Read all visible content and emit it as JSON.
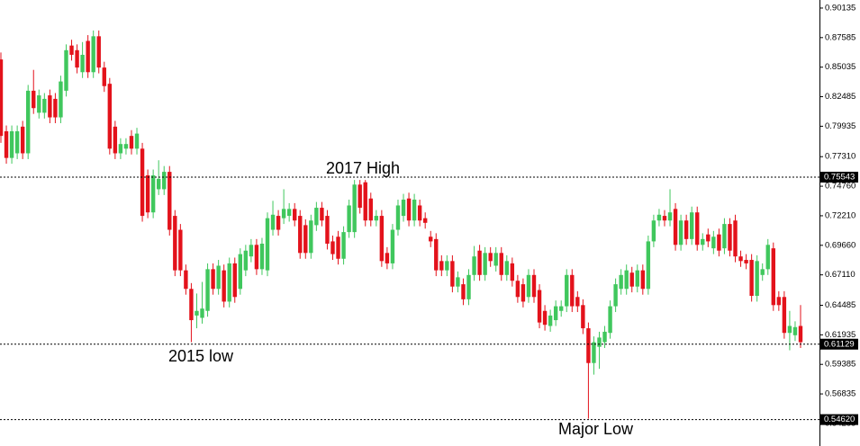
{
  "chart_data": {
    "type": "candlestick",
    "up_color": "#40c75d",
    "down_color": "#e3121b",
    "ylim": [
      0.5234,
      0.9083
    ],
    "yticks": [
      0.90135,
      0.87585,
      0.85035,
      0.82485,
      0.79935,
      {
        "value": 0.7731,
        "label": "0.77310"
      },
      {
        "value": 0.7476,
        "label": "0.74760"
      },
      {
        "value": 0.7221,
        "label": "0.72210"
      },
      {
        "value": 0.6966,
        "label": "0.69660"
      },
      {
        "value": 0.6711,
        "label": "0.67110"
      },
      0.64485,
      0.61935,
      0.59385,
      0.56835,
      0.54285
    ],
    "levels": [
      {
        "value": 0.75543,
        "label": "0.75543"
      },
      {
        "value": 0.61129,
        "label": "0.61129"
      },
      {
        "value": 0.5462,
        "label": "0.54620"
      }
    ],
    "annotations": [
      "2017 High",
      "2015 low",
      "Major Low"
    ],
    "open": [
      0.857,
      0.795,
      0.772,
      0.776,
      0.799,
      0.776,
      0.83,
      0.811,
      0.811,
      0.826,
      0.823,
      0.807,
      0.83,
      0.869,
      0.865,
      0.846,
      0.873,
      0.846,
      0.877,
      0.85,
      0.836,
      0.799,
      0.776,
      0.78,
      0.791,
      0.78,
      0.78,
      0.757,
      0.725,
      0.745,
      0.745,
      0.76,
      0.722,
      0.71,
      0.675,
      0.659,
      0.636,
      0.634,
      0.64,
      0.676,
      0.659,
      0.675,
      0.648,
      0.681,
      0.659,
      0.675,
      0.687,
      0.697,
      0.676,
      0.675,
      0.71,
      0.722,
      0.72,
      0.722,
      0.728,
      0.722,
      0.714,
      0.69,
      0.714,
      0.729,
      0.722,
      0.7,
      0.704,
      0.685,
      0.708,
      0.708,
      0.749,
      0.751,
      0.737,
      0.718,
      0.722,
      0.69,
      0.681,
      0.71,
      0.722,
      0.737,
      0.718,
      0.731,
      0.72,
      0.704,
      0.702,
      0.683,
      0.675,
      0.683,
      0.661,
      0.663,
      0.65,
      0.671,
      0.692,
      0.671,
      0.69,
      0.679,
      0.69,
      0.671,
      0.681,
      0.666,
      0.663,
      0.652,
      0.671,
      0.658,
      0.64,
      0.627,
      0.632,
      0.64,
      0.644,
      0.671,
      0.652,
      0.645,
      0.625,
      0.595,
      0.609,
      0.613,
      0.621,
      0.644,
      0.659,
      0.659,
      0.673,
      0.661,
      0.675,
      0.659,
      0.7,
      0.718,
      0.722,
      0.718,
      0.728,
      0.697,
      0.718,
      0.702,
      0.725,
      0.697,
      0.706,
      0.694,
      0.706,
      0.694,
      0.715,
      0.718,
      0.687,
      0.684,
      0.684,
      0.653,
      0.671,
      0.676,
      0.694,
      0.652,
      0.652,
      0.621,
      0.619,
      0.627
    ],
    "high": [
      0.863,
      0.8,
      0.8,
      0.8,
      0.804,
      0.835,
      0.848,
      0.831,
      0.828,
      0.831,
      0.828,
      0.843,
      0.87,
      0.874,
      0.87,
      0.872,
      0.878,
      0.882,
      0.882,
      0.855,
      0.841,
      0.804,
      0.789,
      0.789,
      0.796,
      0.798,
      0.785,
      0.762,
      0.762,
      0.77,
      0.765,
      0.765,
      0.727,
      0.715,
      0.68,
      0.664,
      0.655,
      0.665,
      0.681,
      0.681,
      0.684,
      0.68,
      0.686,
      0.686,
      0.694,
      0.697,
      0.702,
      0.702,
      0.703,
      0.725,
      0.735,
      0.727,
      0.745,
      0.733,
      0.733,
      0.727,
      0.719,
      0.723,
      0.734,
      0.734,
      0.727,
      0.705,
      0.709,
      0.713,
      0.736,
      0.753,
      0.753,
      0.753,
      0.742,
      0.727,
      0.727,
      0.695,
      0.715,
      0.736,
      0.741,
      0.742,
      0.741,
      0.736,
      0.725,
      0.709,
      0.707,
      0.688,
      0.688,
      0.688,
      0.674,
      0.668,
      0.676,
      0.696,
      0.697,
      0.695,
      0.695,
      0.695,
      0.695,
      0.688,
      0.686,
      0.671,
      0.668,
      0.676,
      0.676,
      0.663,
      0.645,
      0.641,
      0.649,
      0.649,
      0.676,
      0.676,
      0.657,
      0.65,
      0.63,
      0.618,
      0.622,
      0.627,
      0.649,
      0.668,
      0.676,
      0.68,
      0.678,
      0.68,
      0.68,
      0.705,
      0.723,
      0.728,
      0.727,
      0.745,
      0.733,
      0.723,
      0.723,
      0.73,
      0.73,
      0.707,
      0.711,
      0.709,
      0.711,
      0.72,
      0.72,
      0.723,
      0.692,
      0.689,
      0.689,
      0.688,
      0.681,
      0.702,
      0.699,
      0.657,
      0.657,
      0.64,
      0.631,
      0.645
    ],
    "low": [
      0.785,
      0.767,
      0.767,
      0.771,
      0.771,
      0.771,
      0.81,
      0.806,
      0.806,
      0.802,
      0.802,
      0.802,
      0.825,
      0.856,
      0.845,
      0.841,
      0.841,
      0.841,
      0.845,
      0.829,
      0.775,
      0.771,
      0.771,
      0.775,
      0.775,
      0.775,
      0.717,
      0.72,
      0.72,
      0.74,
      0.74,
      0.705,
      0.67,
      0.67,
      0.654,
      0.613,
      0.625,
      0.629,
      0.635,
      0.654,
      0.654,
      0.643,
      0.643,
      0.647,
      0.654,
      0.67,
      0.682,
      0.671,
      0.671,
      0.67,
      0.705,
      0.705,
      0.715,
      0.717,
      0.713,
      0.685,
      0.685,
      0.685,
      0.709,
      0.713,
      0.693,
      0.684,
      0.68,
      0.68,
      0.703,
      0.703,
      0.724,
      0.713,
      0.713,
      0.713,
      0.678,
      0.676,
      0.676,
      0.705,
      0.717,
      0.713,
      0.713,
      0.713,
      0.711,
      0.695,
      0.67,
      0.67,
      0.67,
      0.656,
      0.656,
      0.645,
      0.645,
      0.666,
      0.666,
      0.666,
      0.678,
      0.674,
      0.666,
      0.666,
      0.661,
      0.647,
      0.643,
      0.647,
      0.647,
      0.625,
      0.623,
      0.622,
      0.627,
      0.635,
      0.639,
      0.639,
      0.639,
      0.62,
      0.547,
      0.585,
      0.59,
      0.608,
      0.616,
      0.639,
      0.654,
      0.654,
      0.656,
      0.656,
      0.654,
      0.654,
      0.695,
      0.713,
      0.713,
      0.713,
      0.692,
      0.692,
      0.697,
      0.697,
      0.692,
      0.692,
      0.695,
      0.689,
      0.687,
      0.689,
      0.687,
      0.682,
      0.678,
      0.676,
      0.648,
      0.648,
      0.666,
      0.671,
      0.64,
      0.64,
      0.616,
      0.606,
      0.614,
      0.608
    ],
    "close": [
      0.791,
      0.772,
      0.795,
      0.795,
      0.776,
      0.83,
      0.815,
      0.826,
      0.823,
      0.807,
      0.807,
      0.838,
      0.865,
      0.861,
      0.85,
      0.861,
      0.846,
      0.877,
      0.85,
      0.834,
      0.78,
      0.776,
      0.784,
      0.784,
      0.78,
      0.793,
      0.722,
      0.725,
      0.757,
      0.754,
      0.76,
      0.71,
      0.675,
      0.675,
      0.659,
      0.632,
      0.64,
      0.642,
      0.676,
      0.659,
      0.679,
      0.648,
      0.681,
      0.652,
      0.689,
      0.692,
      0.697,
      0.676,
      0.698,
      0.72,
      0.723,
      0.71,
      0.728,
      0.728,
      0.718,
      0.69,
      0.69,
      0.718,
      0.729,
      0.718,
      0.698,
      0.689,
      0.685,
      0.708,
      0.731,
      0.749,
      0.729,
      0.718,
      0.718,
      0.722,
      0.683,
      0.681,
      0.71,
      0.731,
      0.736,
      0.718,
      0.736,
      0.718,
      0.716,
      0.7,
      0.675,
      0.675,
      0.683,
      0.661,
      0.669,
      0.65,
      0.671,
      0.687,
      0.671,
      0.69,
      0.683,
      0.69,
      0.671,
      0.683,
      0.666,
      0.652,
      0.648,
      0.671,
      0.652,
      0.63,
      0.628,
      0.636,
      0.644,
      0.644,
      0.671,
      0.644,
      0.644,
      0.625,
      0.595,
      0.613,
      0.617,
      0.622,
      0.644,
      0.663,
      0.671,
      0.675,
      0.661,
      0.675,
      0.659,
      0.7,
      0.718,
      0.723,
      0.718,
      0.725,
      0.697,
      0.718,
      0.702,
      0.725,
      0.697,
      0.702,
      0.7,
      0.704,
      0.692,
      0.715,
      0.692,
      0.687,
      0.683,
      0.681,
      0.653,
      0.683,
      0.676,
      0.697,
      0.645,
      0.645,
      0.621,
      0.627,
      0.626,
      0.613
    ]
  }
}
